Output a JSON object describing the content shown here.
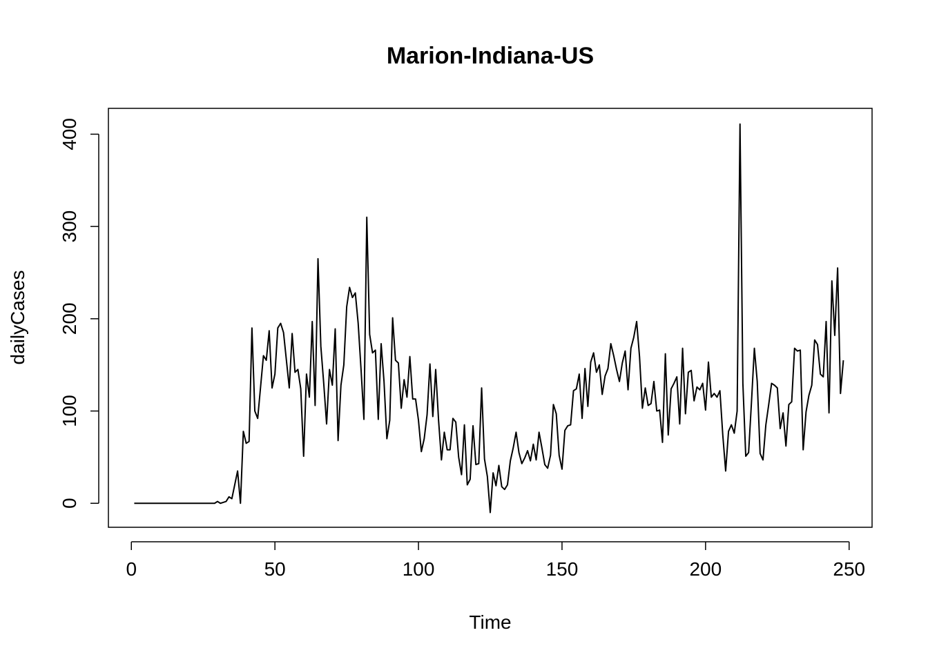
{
  "chart_data": {
    "type": "line",
    "title": "Marion-Indiana-US",
    "xlabel": "Time",
    "ylabel": "dailyCases",
    "xlim": [
      -8,
      258
    ],
    "ylim": [
      -26,
      428
    ],
    "xticks": [
      0,
      50,
      100,
      150,
      200,
      250
    ],
    "xtick_labels": [
      "0",
      "50",
      "100",
      "150",
      "200",
      "250"
    ],
    "yticks": [
      0,
      100,
      200,
      300,
      400
    ],
    "ytick_labels": [
      "0",
      "100",
      "200",
      "300",
      "400"
    ],
    "grid": false,
    "series": [
      {
        "x_start": 1,
        "color": "#000000",
        "values": [
          0,
          0,
          0,
          0,
          0,
          0,
          0,
          0,
          0,
          0,
          0,
          0,
          0,
          0,
          0,
          0,
          0,
          0,
          0,
          0,
          0,
          0,
          0,
          0,
          0,
          0,
          0,
          0,
          0,
          2,
          0,
          1,
          2,
          7,
          5,
          20,
          35,
          0,
          78,
          65,
          67,
          190,
          100,
          92,
          126,
          160,
          155,
          187,
          125,
          140,
          190,
          195,
          185,
          155,
          125,
          184,
          142,
          145,
          124,
          51,
          140,
          115,
          197,
          106,
          265,
          170,
          130,
          86,
          145,
          128,
          189,
          68,
          128,
          150,
          213,
          234,
          223,
          228,
          195,
          145,
          91,
          310,
          183,
          163,
          166,
          91,
          173,
          132,
          70,
          90,
          201,
          155,
          152,
          103,
          134,
          115,
          159,
          113,
          113,
          90,
          56,
          70,
          96,
          151,
          94,
          145,
          90,
          47,
          77,
          58,
          58,
          92,
          88,
          50,
          31,
          85,
          20,
          26,
          84,
          42,
          43,
          125,
          48,
          29,
          -10,
          33,
          19,
          41,
          18,
          15,
          20,
          46,
          60,
          77,
          55,
          43,
          49,
          57,
          46,
          64,
          47,
          77,
          60,
          42,
          38,
          52,
          107,
          97,
          52,
          37,
          79,
          84,
          85,
          122,
          124,
          140,
          92,
          146,
          105,
          153,
          163,
          142,
          150,
          118,
          138,
          146,
          173,
          160,
          145,
          132,
          152,
          165,
          123,
          168,
          180,
          197,
          159,
          103,
          125,
          106,
          108,
          132,
          100,
          101,
          66,
          162,
          74,
          124,
          130,
          137,
          86,
          168,
          97,
          142,
          144,
          111,
          126,
          123,
          130,
          101,
          153,
          115,
          119,
          115,
          122,
          74,
          35,
          78,
          85,
          76,
          100,
          411,
          130,
          51,
          55,
          110,
          168,
          132,
          54,
          47,
          85,
          107,
          130,
          128,
          125,
          81,
          98,
          62,
          107,
          110,
          168,
          165,
          166,
          58,
          99,
          117,
          128,
          177,
          172,
          140,
          137,
          197,
          98,
          241,
          182,
          255,
          119,
          155
        ]
      }
    ]
  }
}
